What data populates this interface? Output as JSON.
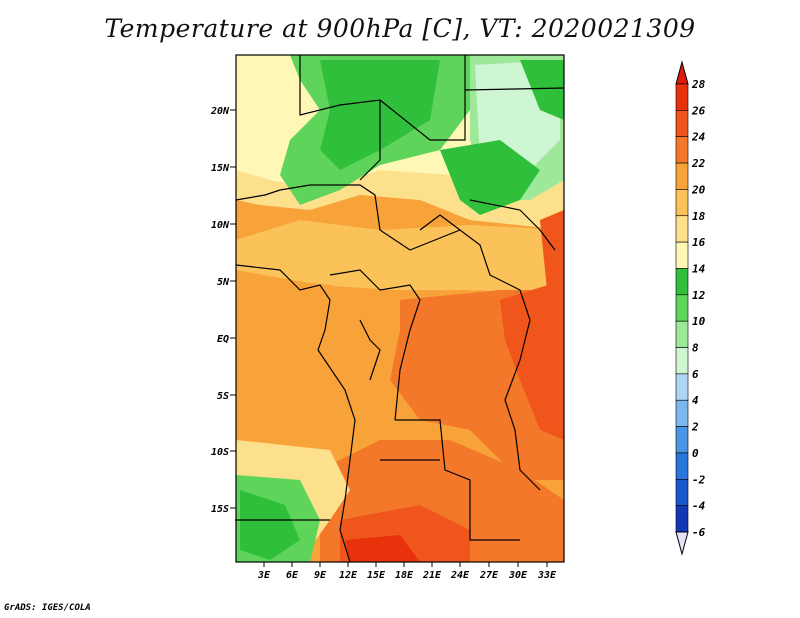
{
  "title": "Temperature at 900hPa [C], VT: 2020021309",
  "footer": "GrADS: IGES/COLA",
  "map": {
    "lat_labels": [
      "20N",
      "15N",
      "10N",
      "5N",
      "EQ",
      "5S",
      "10S",
      "15S"
    ],
    "lon_labels": [
      "3E",
      "6E",
      "9E",
      "12E",
      "15E",
      "18E",
      "21E",
      "24E",
      "27E",
      "30E",
      "33E"
    ]
  },
  "colorbar": {
    "levels": [
      {
        "label": "28",
        "color": "#e8320c"
      },
      {
        "label": "26",
        "color": "#f0561c"
      },
      {
        "label": "24",
        "color": "#f4782a"
      },
      {
        "label": "22",
        "color": "#f8a33a"
      },
      {
        "label": "20",
        "color": "#fbc25a"
      },
      {
        "label": "18",
        "color": "#fce08c"
      },
      {
        "label": "16",
        "color": "#fef7b6"
      },
      {
        "label": "14",
        "color": "#2fbf3a"
      },
      {
        "label": "12",
        "color": "#5fd45a"
      },
      {
        "label": "10",
        "color": "#9ee89a"
      },
      {
        "label": "8",
        "color": "#cff6d2"
      },
      {
        "label": "6",
        "color": "#aed6f2"
      },
      {
        "label": "4",
        "color": "#7cb8ee"
      },
      {
        "label": "2",
        "color": "#4a96e4"
      },
      {
        "label": "0",
        "color": "#2a76dc"
      },
      {
        "label": "-2",
        "color": "#1b58cc"
      },
      {
        "label": "-4",
        "color": "#1238b4"
      },
      {
        "label": "-6",
        "color": "#0c1e8c"
      }
    ],
    "top_color": "#e01a0c",
    "bottom_color": "#e4e2fa"
  }
}
